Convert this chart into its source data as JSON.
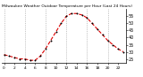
{
  "title": "Milwaukee Weather Outdoor Temperature per Hour (Last 24 Hours)",
  "hours": [
    0,
    1,
    2,
    3,
    4,
    5,
    6,
    7,
    8,
    9,
    10,
    11,
    12,
    13,
    14,
    15,
    16,
    17,
    18,
    19,
    20,
    21,
    22,
    23
  ],
  "temps": [
    28,
    27,
    26,
    25,
    25,
    24,
    24,
    27,
    32,
    38,
    44,
    50,
    55,
    57,
    57,
    56,
    54,
    50,
    46,
    42,
    38,
    35,
    32,
    30
  ],
  "line_color": "#dd0000",
  "marker_color": "#000000",
  "bg_color": "#ffffff",
  "grid_color": "#999999",
  "ylim": [
    22,
    60
  ],
  "yticks": [
    25,
    30,
    35,
    40,
    45,
    50,
    55
  ],
  "xtick_positions": [
    0,
    2,
    4,
    6,
    8,
    10,
    12,
    14,
    16,
    18,
    20,
    22
  ],
  "grid_hours": [
    0,
    4,
    8,
    12,
    16,
    20
  ],
  "title_fontsize": 3.2,
  "ylabel_fontsize": 3.5,
  "xlabel_fontsize": 3.2
}
